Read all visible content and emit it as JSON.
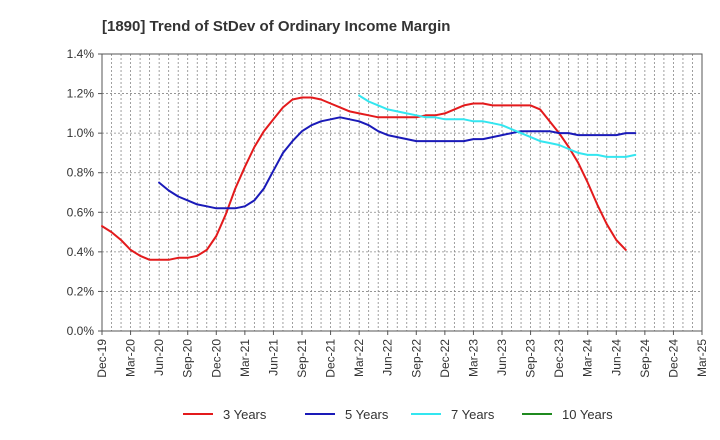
{
  "chart_data": {
    "type": "line",
    "title": "[1890]  Trend of StDev of Ordinary Income Margin",
    "xlabel": "",
    "ylabel": "",
    "ylim": [
      0,
      1.4
    ],
    "yticks": [
      "0.0%",
      "0.2%",
      "0.4%",
      "0.6%",
      "0.8%",
      "1.0%",
      "1.2%",
      "1.4%"
    ],
    "ytick_values": [
      0,
      0.2,
      0.4,
      0.6,
      0.8,
      1.0,
      1.2,
      1.4
    ],
    "xticks": [
      "Dec-19",
      "Mar-20",
      "Jun-20",
      "Sep-20",
      "Dec-20",
      "Mar-21",
      "Jun-21",
      "Sep-21",
      "Dec-21",
      "Mar-22",
      "Jun-22",
      "Sep-22",
      "Dec-22",
      "Mar-23",
      "Jun-23",
      "Sep-23",
      "Dec-23",
      "Mar-24",
      "Jun-24",
      "Sep-24",
      "Dec-24",
      "Mar-25"
    ],
    "grid": true,
    "legend_position": "bottom",
    "series": [
      {
        "name": "3 Years",
        "color": "#e31a1c",
        "start_index": 0,
        "values": [
          0.53,
          0.5,
          0.46,
          0.41,
          0.38,
          0.36,
          0.36,
          0.36,
          0.37,
          0.37,
          0.38,
          0.41,
          0.48,
          0.59,
          0.72,
          0.83,
          0.93,
          1.01,
          1.07,
          1.13,
          1.17,
          1.18,
          1.18,
          1.17,
          1.15,
          1.13,
          1.11,
          1.1,
          1.09,
          1.08,
          1.08,
          1.08,
          1.08,
          1.08,
          1.09,
          1.09,
          1.1,
          1.12,
          1.14,
          1.15,
          1.15,
          1.14,
          1.14,
          1.14,
          1.14,
          1.14,
          1.12,
          1.06,
          1.0,
          0.93,
          0.85,
          0.75,
          0.64,
          0.54,
          0.46,
          0.41
        ]
      },
      {
        "name": "5 Years",
        "color": "#1a1ab8",
        "start_index": 6,
        "values": [
          0.75,
          0.71,
          0.68,
          0.66,
          0.64,
          0.63,
          0.62,
          0.62,
          0.62,
          0.63,
          0.66,
          0.72,
          0.81,
          0.9,
          0.96,
          1.01,
          1.04,
          1.06,
          1.07,
          1.08,
          1.07,
          1.06,
          1.04,
          1.01,
          0.99,
          0.98,
          0.97,
          0.96,
          0.96,
          0.96,
          0.96,
          0.96,
          0.96,
          0.97,
          0.97,
          0.98,
          0.99,
          1.0,
          1.01,
          1.01,
          1.01,
          1.01,
          1.0,
          1.0,
          0.99,
          0.99,
          0.99,
          0.99,
          0.99,
          1.0,
          1.0
        ]
      },
      {
        "name": "7 Years",
        "color": "#33e6f0",
        "start_index": 27,
        "values": [
          1.19,
          1.16,
          1.14,
          1.12,
          1.11,
          1.1,
          1.09,
          1.08,
          1.08,
          1.07,
          1.07,
          1.07,
          1.06,
          1.06,
          1.05,
          1.04,
          1.02,
          1.0,
          0.98,
          0.96,
          0.95,
          0.94,
          0.92,
          0.9,
          0.89,
          0.89,
          0.88,
          0.88,
          0.88,
          0.89
        ]
      },
      {
        "name": "10 Years",
        "color": "#1f8a1f",
        "start_index": 0,
        "values": []
      }
    ]
  }
}
